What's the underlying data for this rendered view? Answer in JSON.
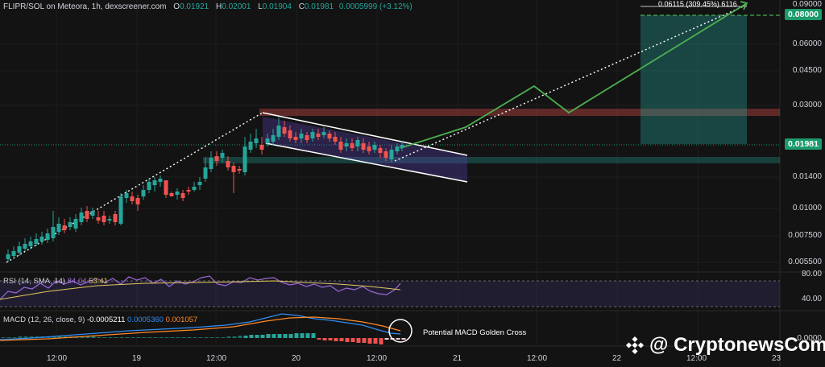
{
  "header": {
    "symbol": "FLIPR/SOL on Meteora, 1h, dexscreener.com",
    "o_label": "O",
    "o_value": "0.01921",
    "h_label": "H",
    "h_value": "0.02001",
    "l_label": "L",
    "l_value": "0.01904",
    "c_label": "C",
    "c_value": "0.01981",
    "change": "0.0005999 (+3.12%)"
  },
  "price_axis": [
    "0.09000",
    "0.06000",
    "0.04500",
    "0.03000",
    "0.01400",
    "0.01000",
    "0.007500",
    "0.005500"
  ],
  "price_tags": {
    "target": "0.08000",
    "current": "0.01981"
  },
  "measure_label": "0.06115 (309.45%) 6116",
  "rsi": {
    "label": "RSI (14, SMA, 14)",
    "value1": "84.04",
    "value2": "53.41",
    "axis_top": "80.00",
    "axis_bottom": "40.00"
  },
  "macd": {
    "label": "MACD (12, 26, close, 9)",
    "v1": "-0.0005211",
    "v2": "0.0005360",
    "v3": "0.001057",
    "axis": "0.0000",
    "annotation": "Potential MACD Golden Cross"
  },
  "time_axis": [
    "12:00",
    "19",
    "12:00",
    "20",
    "12:00",
    "21",
    "12:00",
    "22",
    "12:00",
    "23"
  ],
  "watermark": "@ CryptonewsCom",
  "colors": {
    "up": "#26a69a",
    "down": "#ef5350",
    "bg": "#131313",
    "tag": "#1b9a6b"
  }
}
